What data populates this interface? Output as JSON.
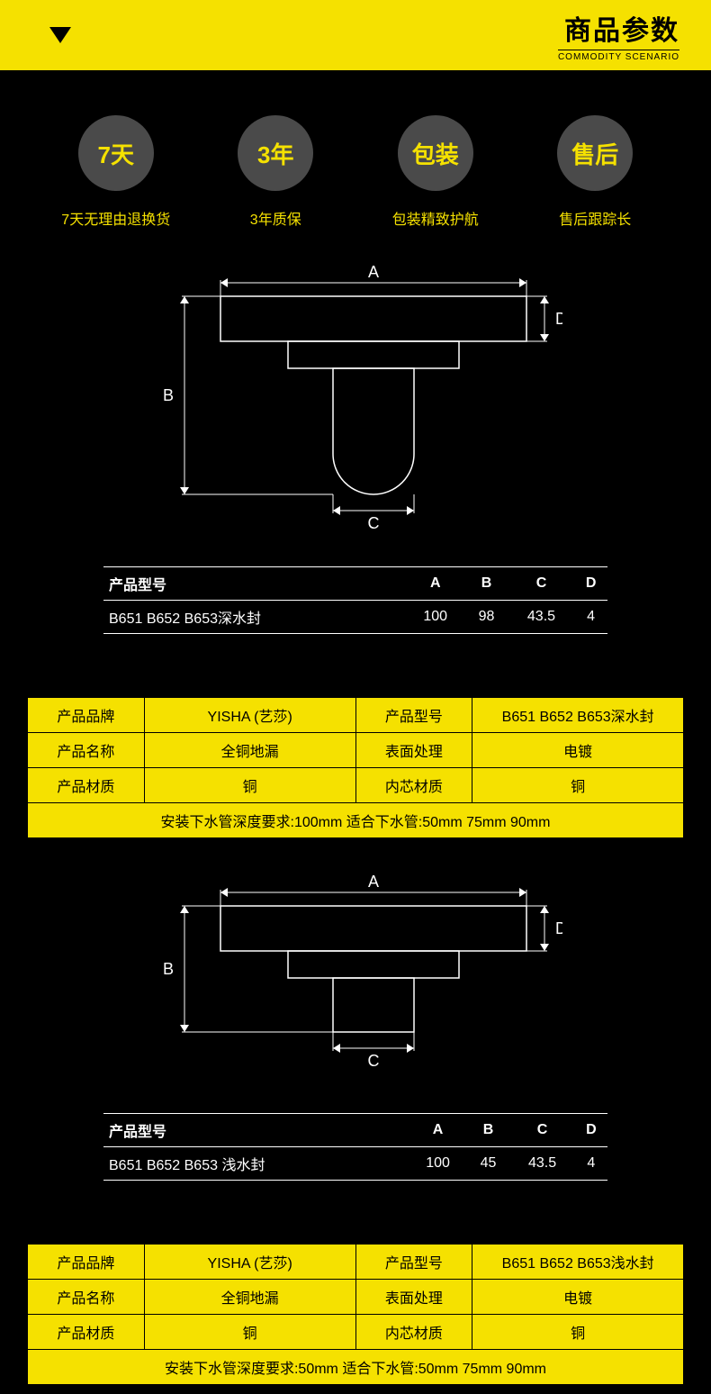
{
  "header": {
    "title_cn": "商品参数",
    "title_en": "COMMODITY SCENARIO"
  },
  "badges": [
    {
      "circle": "7天",
      "caption": "7天无理由退换货"
    },
    {
      "circle": "3年",
      "caption": "3年质保"
    },
    {
      "circle": "包装",
      "caption": "包装精致护航"
    },
    {
      "circle": "售后",
      "caption": "售后跟踪长"
    }
  ],
  "colors": {
    "accent": "#f5e100",
    "background": "#000000",
    "badge_bg": "#4a4a4a",
    "line": "#ffffff"
  },
  "diagram1": {
    "labels": {
      "A": "A",
      "B": "B",
      "C": "C",
      "D": "D"
    },
    "geom": {
      "top_width": 340,
      "top_height": 50,
      "mid_width": 190,
      "mid_height": 30,
      "pipe_width": 90,
      "pipe_height": 140,
      "total_height": 250
    }
  },
  "dimtable1": {
    "headers": [
      "产品型号",
      "A",
      "B",
      "C",
      "D"
    ],
    "row": [
      "B651 B652 B653深水封",
      "100",
      "98",
      "43.5",
      "4"
    ]
  },
  "spec1": {
    "rows": [
      [
        "产品品牌",
        "YISHA (艺莎)",
        "产品型号",
        "B651 B652 B653深水封"
      ],
      [
        "产品名称",
        "全铜地漏",
        "表面处理",
        "电镀"
      ],
      [
        "产品材质",
        "铜",
        "内芯材质",
        "铜"
      ]
    ],
    "footer": "安装下水管深度要求:100mm     适合下水管:50mm  75mm  90mm"
  },
  "diagram2": {
    "labels": {
      "A": "A",
      "B": "B",
      "C": "C",
      "D": "D"
    },
    "geom": {
      "top_width": 340,
      "top_height": 50,
      "mid_width": 190,
      "mid_height": 30,
      "pipe_width": 90,
      "pipe_height": 60,
      "total_height": 170
    }
  },
  "dimtable2": {
    "headers": [
      "产品型号",
      "A",
      "B",
      "C",
      "D"
    ],
    "row": [
      "B651 B652 B653 浅水封",
      "100",
      "45",
      "43.5",
      "4"
    ]
  },
  "spec2": {
    "rows": [
      [
        "产品品牌",
        "YISHA (艺莎)",
        "产品型号",
        "B651 B652 B653浅水封"
      ],
      [
        "产品名称",
        "全铜地漏",
        "表面处理",
        "电镀"
      ],
      [
        "产品材质",
        "铜",
        "内芯材质",
        "铜"
      ]
    ],
    "footer": "安装下水管深度要求:50mm     适合下水管:50mm  75mm  90mm"
  }
}
